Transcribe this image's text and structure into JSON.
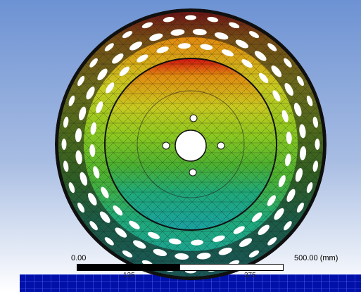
{
  "viewport": {
    "background_top": "#6d92d3",
    "background_bottom": "#ffffff"
  },
  "model": {
    "part": "wheel-rim-icon",
    "contour_colors": [
      "#d01010",
      "#e08a10",
      "#c8c820",
      "#8cc820",
      "#4cb030",
      "#20a878",
      "#1aa0a0"
    ],
    "ground_color": "#0010a8",
    "mesh_line_color": "#000000"
  },
  "scale": {
    "left_label": "0.00",
    "right_label": "500.00 (mm)",
    "q1_label": "125",
    "q3_label": "375"
  }
}
